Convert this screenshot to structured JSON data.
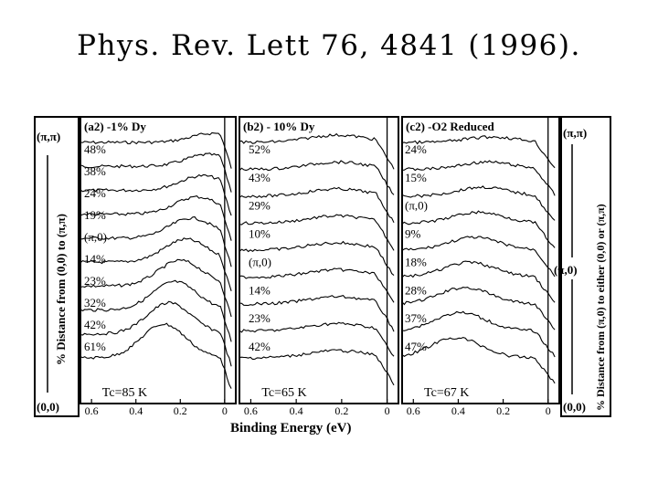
{
  "citation": "Phys. Rev. Lett 76, 4841 (1996).",
  "chart_data": {
    "type": "line",
    "description_axis": "Binding Energy (eV)",
    "xlabel": "Binding Energy (eV)",
    "x_reversed": true,
    "left_axis_label": "% Distance from (0,0) to (π,π)",
    "left_axis_top": "(π,π)",
    "left_axis_bottom": "(0,0)",
    "right_axis_label": "% Distance from (π,0) to either (0,0) or (π,π)",
    "right_axis_top": "(π,π)",
    "right_axis_mid": "(π,0)",
    "right_axis_bottom": "(0,0)",
    "panels": [
      {
        "title": "(a2) -1% Dy",
        "tc": "Tc=85 K",
        "xlim": [
          0.65,
          -0.05
        ],
        "ticks": [
          "0.6",
          "0.4",
          "0.2",
          "0"
        ],
        "tick_values": [
          0.6,
          0.4,
          0.2,
          0.0
        ],
        "series_labels": [
          "48%",
          "38%",
          "24%",
          "19%",
          "(π,0)",
          "14%",
          "23%",
          "32%",
          "42%",
          "61%"
        ],
        "series_count": 10
      },
      {
        "title": "(b2) - 10% Dy",
        "tc": "Tc=65 K",
        "xlim": [
          0.65,
          -0.05
        ],
        "ticks": [
          "0.6",
          "0.4",
          "0.2",
          "0"
        ],
        "tick_values": [
          0.6,
          0.4,
          0.2,
          0.0
        ],
        "series_labels": [
          "52%",
          "43%",
          "29%",
          "10%",
          "(π,0)",
          "14%",
          "23%",
          "42%"
        ],
        "series_count": 9
      },
      {
        "title": "(c2) -O2 Reduced",
        "tc": "Tc=67 K",
        "xlim": [
          0.65,
          -0.05
        ],
        "ticks": [
          "0.6",
          "0.4",
          "0.2",
          "0"
        ],
        "tick_values": [
          0.6,
          0.4,
          0.2,
          0.0
        ],
        "series_labels": [
          "24%",
          "15%",
          "(π,0)",
          "9%",
          "18%",
          "28%",
          "37%",
          "47%"
        ],
        "series_count": 9
      }
    ]
  }
}
